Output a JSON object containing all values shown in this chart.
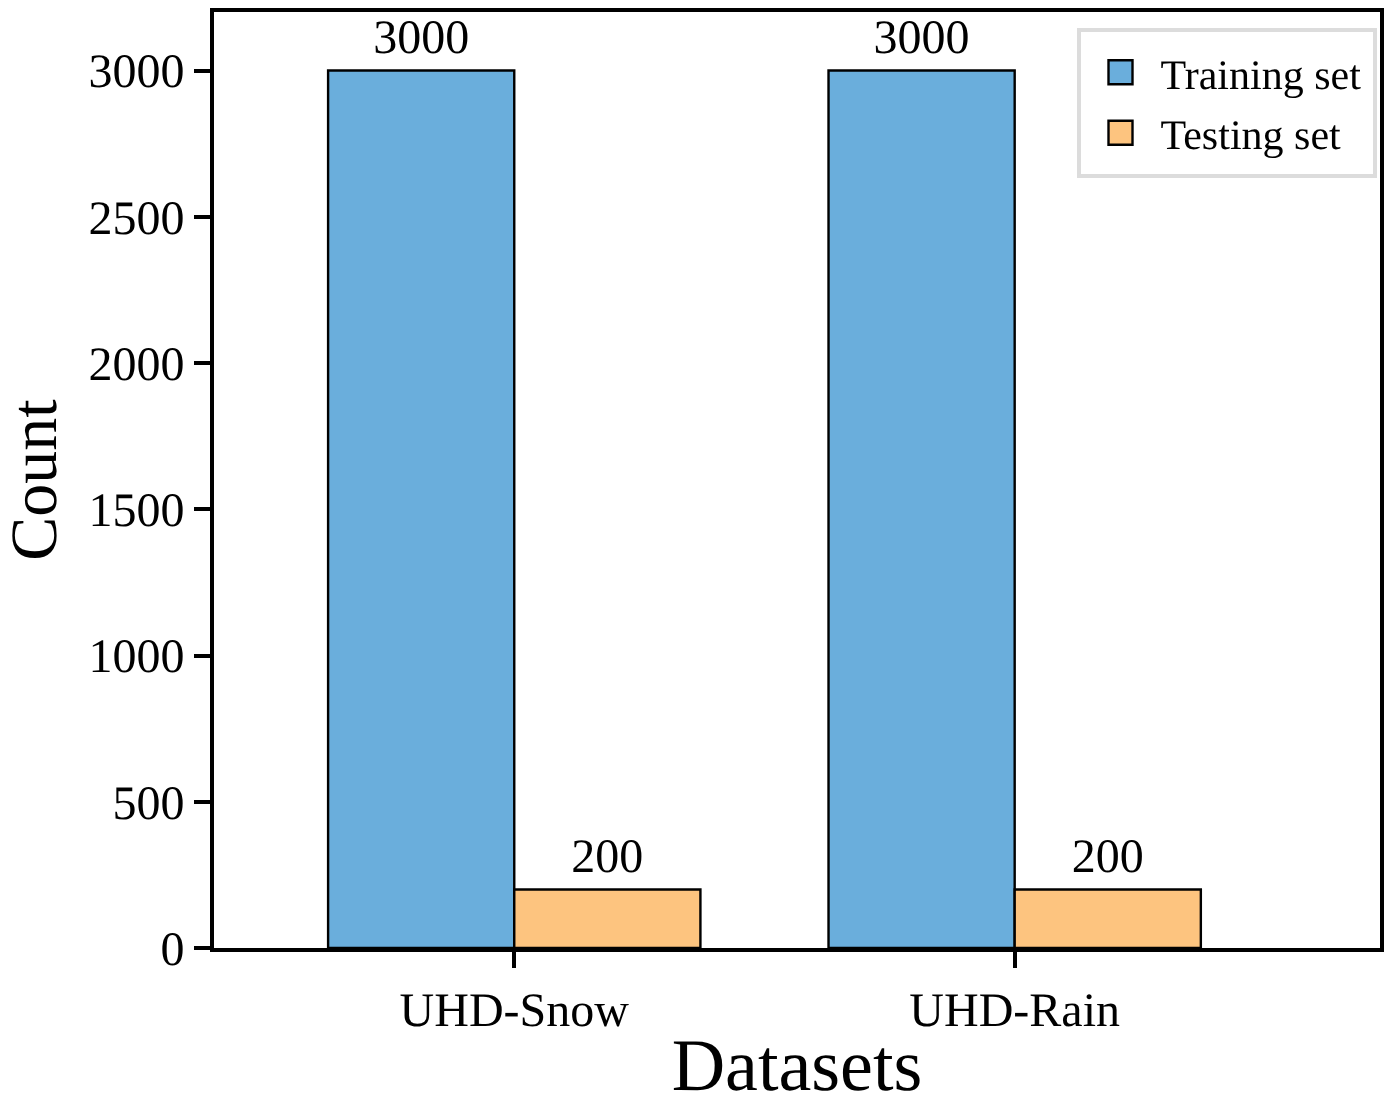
{
  "chart_data": {
    "type": "bar",
    "xlabel": "Datasets",
    "ylabel": "Count",
    "categories": [
      "UHD-Snow",
      "UHD-Rain"
    ],
    "series": [
      {
        "name": "Training set",
        "color": "#6aaedc",
        "values": [
          3000,
          3000
        ]
      },
      {
        "name": "Testing set",
        "color": "#fdc47f",
        "values": [
          200,
          200
        ]
      }
    ],
    "ylim": [
      0,
      3200
    ],
    "yticks": [
      0,
      500,
      1000,
      1500,
      2000,
      2500,
      3000
    ],
    "grid": false,
    "legend": "top right",
    "data_labels": true
  }
}
